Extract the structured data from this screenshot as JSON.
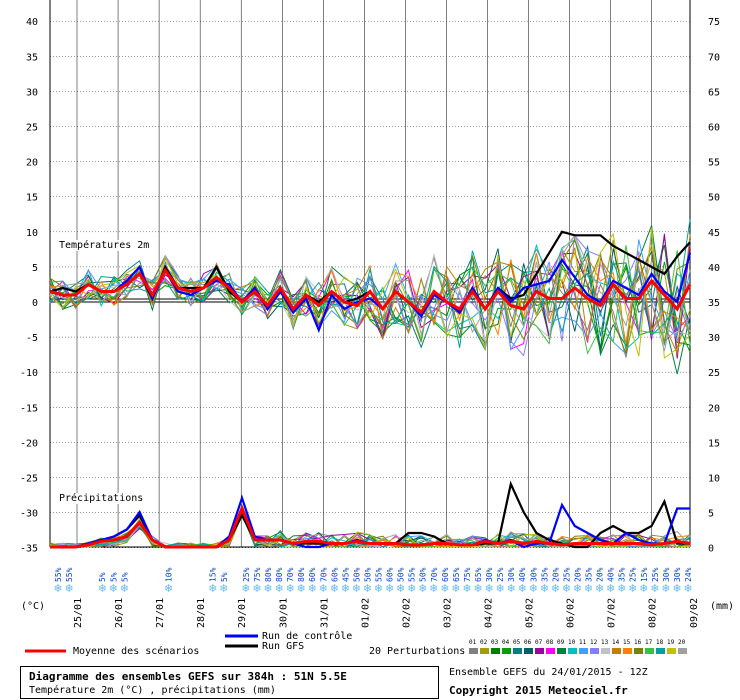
{
  "chart_data": {
    "type": "line",
    "title": "Diagramme des ensembles GEFS sur 384h : 51N 5.5E",
    "subtitle": "Température 2m (°C) , précipitations (mm)",
    "panel_labels": {
      "temperature": "Températures 2m",
      "precip": "Précipitations"
    },
    "left_axis": {
      "unit": "(°C)",
      "ticks": [
        40,
        35,
        30,
        25,
        20,
        15,
        10,
        5,
        0,
        -5,
        -10,
        -15,
        -20,
        -25,
        -30,
        -35
      ],
      "range": [
        -35,
        40
      ]
    },
    "right_axis": {
      "unit": "(mm)",
      "ticks": [
        75,
        70,
        65,
        60,
        55,
        50,
        45,
        40,
        35,
        30,
        25,
        20,
        15,
        10,
        5,
        0
      ]
    },
    "date_labels": [
      "25/01",
      "26/01",
      "27/01",
      "28/01",
      "29/01",
      "30/01",
      "31/01",
      "01/02",
      "02/02",
      "03/02",
      "04/02",
      "05/02",
      "06/02",
      "07/02",
      "08/02",
      "09/02"
    ],
    "snow_probabilities": [
      "55%",
      "55%",
      "",
      "",
      "5%",
      "5%",
      "5%",
      "",
      "",
      "",
      "10%",
      "",
      "",
      "",
      "15%",
      "5%",
      "",
      "25%",
      "75%",
      "80%",
      "80%",
      "70%",
      "80%",
      "60%",
      "70%",
      "60%",
      "45%",
      "50%",
      "50%",
      "55%",
      "60%",
      "50%",
      "55%",
      "50%",
      "70%",
      "60%",
      "65%",
      "75%",
      "65%",
      "30%",
      "25%",
      "30%",
      "40%",
      "30%",
      "35%",
      "20%",
      "25%",
      "20%",
      "35%",
      "20%",
      "40%",
      "35%",
      "25%",
      "15%",
      "25%",
      "30%",
      "30%",
      "24%"
    ],
    "series": [
      {
        "name": "Moyenne des scénarios",
        "color": "#ff0000",
        "temp": [
          1.5,
          1,
          1,
          2.5,
          1.5,
          1.5,
          2.5,
          4,
          1,
          4.5,
          2,
          1.5,
          2,
          3.5,
          2,
          0,
          1.5,
          -0.5,
          2,
          -1,
          1,
          -0.5,
          1.5,
          0,
          -0.5,
          1.5,
          -1,
          1.5,
          0,
          -1.5,
          1.5,
          0,
          -1,
          1.5,
          -1,
          1.5,
          -0.5,
          -1,
          1.5,
          0.5,
          0.5,
          2,
          0.5,
          -0.5,
          2.5,
          0.5,
          0.5,
          3,
          1,
          -1,
          2.5
        ],
        "precip": [
          0,
          0,
          0,
          0.3,
          0.8,
          1,
          1.5,
          3.5,
          1,
          0,
          0,
          0,
          0,
          0,
          1,
          5.5,
          1,
          1,
          1,
          0.5,
          0.8,
          0.8,
          0.5,
          0.5,
          0.8,
          0.5,
          0.5,
          0.5,
          0.3,
          0.3,
          0.5,
          0.5,
          0.3,
          0.3,
          0.8,
          0.5,
          0.8,
          0.5,
          0.8,
          0.5,
          0.3,
          0.5,
          0.5,
          0.5,
          0.5,
          0.5,
          0.5,
          0.3,
          0.5,
          0.8,
          0.5
        ]
      },
      {
        "name": "Run de contrôle",
        "color": "#0000ff",
        "temp": [
          1.5,
          1,
          1,
          2.5,
          1.5,
          1.5,
          3,
          5,
          0.5,
          4.5,
          1.5,
          1,
          2,
          3,
          2.5,
          0,
          2,
          -1,
          1.5,
          -1.5,
          0.5,
          -4,
          1,
          -1,
          0,
          0.5,
          -1,
          1.5,
          0,
          -2,
          1,
          0,
          -1.5,
          2,
          -1,
          2,
          0,
          2,
          2.5,
          3,
          6,
          3.5,
          1,
          0,
          3,
          2,
          1,
          4,
          1.5,
          0,
          7
        ],
        "precip": [
          0,
          0,
          0,
          0.5,
          1,
          1.5,
          2.5,
          5,
          1,
          0,
          0,
          0,
          0,
          0,
          1.5,
          7,
          1.5,
          1,
          1,
          0.5,
          0,
          0,
          0.5,
          0.5,
          1,
          0.5,
          0.5,
          0.5,
          0.3,
          0.3,
          0.5,
          0.5,
          0.3,
          0.3,
          1,
          0.5,
          1,
          0,
          0.5,
          0.5,
          6,
          3,
          2,
          1,
          0.5,
          2,
          1,
          0.5,
          0.5,
          5.5,
          5.5
        ]
      },
      {
        "name": "Run GFS",
        "color": "#000000",
        "temp": [
          1.5,
          2,
          1.5,
          2.5,
          1.5,
          1.5,
          2.5,
          4,
          0.5,
          5,
          2,
          2,
          2,
          5,
          1.5,
          0,
          2,
          -1,
          1.5,
          -1,
          1,
          0,
          1.5,
          0,
          0.5,
          1.5,
          -1,
          1.5,
          0,
          -2,
          1.5,
          0,
          -1.5,
          2,
          -1,
          2,
          0.5,
          1,
          4,
          7,
          10,
          9.5,
          9.5,
          9.5,
          8,
          7,
          6,
          5,
          4,
          6.5,
          8.5
        ],
        "precip": [
          0,
          0,
          0,
          0.5,
          1,
          1.5,
          2.5,
          4.5,
          1,
          0,
          0,
          0,
          0,
          0,
          1,
          4.5,
          1,
          1,
          1,
          0.5,
          0.5,
          0.5,
          0.5,
          0.5,
          1,
          0.5,
          0.5,
          0.5,
          2,
          2,
          1.5,
          0.5,
          0.3,
          0.3,
          0.5,
          0.5,
          9,
          5,
          2,
          1,
          0.5,
          0,
          0,
          2,
          3,
          2,
          2,
          3,
          6.5,
          0.5,
          0.5
        ]
      }
    ]
  },
  "legend": {
    "control_label": "Run de contrôle",
    "gfs_label": "Run GFS",
    "mean_label": "Moyenne des scénarios",
    "perturbations_label": "20 Perturbations",
    "perturbation_numbers": [
      "01",
      "02",
      "03",
      "04",
      "05",
      "06",
      "07",
      "08",
      "09",
      "10",
      "11",
      "12",
      "13",
      "14",
      "15",
      "16",
      "17",
      "18",
      "19",
      "20"
    ],
    "perturbation_colors": [
      "#808080",
      "#a0a000",
      "#008000",
      "#00a000",
      "#008080",
      "#006060",
      "#a000a0",
      "#ff00ff",
      "#008040",
      "#00c0c0",
      "#40a0ff",
      "#8080ff",
      "#c0c0c0",
      "#c08000",
      "#ff8000",
      "#808000",
      "#40c040",
      "#00a0a0",
      "#c0c000",
      "#a0a0a0"
    ]
  },
  "footer": {
    "ensemble_label": "Ensemble GEFS du 24/01/2015 - 12Z",
    "copyright": "Copyright 2015 Meteociel.fr"
  }
}
